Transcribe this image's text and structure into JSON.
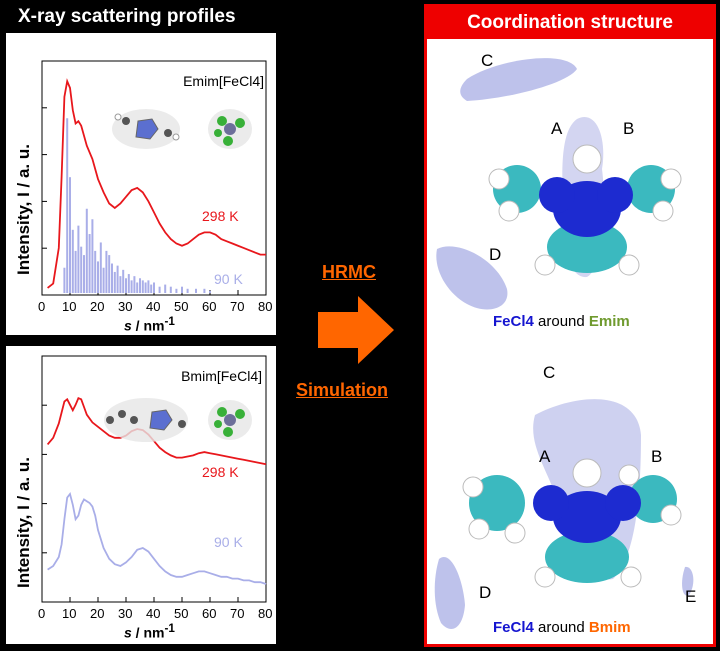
{
  "left_title": "X-ray scattering profiles",
  "right_title": "Coordination structure",
  "hrmc": "HRMC",
  "simulation": "Simulation",
  "charts": [
    {
      "label": "Emim[FeCl4]",
      "temp_hot": "298 K",
      "temp_cold": "90 K"
    },
    {
      "label": "Bmim[FeCl4]",
      "temp_hot": "298 K",
      "temp_cold": "90 K"
    }
  ],
  "y_label": "Intensity, I / a. u.",
  "x_label": "s / nm-1",
  "x_ticks": [
    "0",
    "10",
    "20",
    "30",
    "40",
    "50",
    "60",
    "70",
    "80"
  ],
  "sites_top": [
    "A",
    "B",
    "C",
    "D"
  ],
  "sites_bottom": [
    "A",
    "B",
    "C",
    "D",
    "E"
  ],
  "caption_top": {
    "ion": "FeCl4",
    "word": "around",
    "cation": "Emim"
  },
  "caption_bottom": {
    "ion": "FeCl4",
    "word": "around",
    "cation": "Bmim"
  },
  "colors": {
    "red": "#e8171c",
    "lavender": "#a9aee8",
    "cloud": "#aeb3e6",
    "orange": "#ff6600",
    "blue": "#1515d0",
    "green": "#6f9a2e"
  },
  "chart_data": [
    {
      "type": "line",
      "title": "Emim[FeCl4]",
      "xlabel": "s / nm-1",
      "ylabel": "Intensity, I / a. u.",
      "xlim": [
        0,
        80
      ],
      "series": [
        {
          "name": "298 K",
          "x": [
            2,
            4,
            6,
            7,
            8,
            9,
            10,
            11,
            12,
            13,
            14,
            16,
            18,
            20,
            22,
            24,
            26,
            28,
            30,
            32,
            34,
            36,
            38,
            40,
            42,
            44,
            46,
            48,
            50,
            52,
            54,
            56,
            58,
            60,
            62,
            64,
            66,
            68,
            70,
            72,
            74,
            76,
            78,
            80
          ],
          "y": [
            0.0,
            0.02,
            0.18,
            0.5,
            0.86,
            0.93,
            0.9,
            0.8,
            0.74,
            0.75,
            0.73,
            0.64,
            0.58,
            0.49,
            0.43,
            0.38,
            0.36,
            0.38,
            0.41,
            0.44,
            0.45,
            0.43,
            0.39,
            0.34,
            0.29,
            0.25,
            0.22,
            0.2,
            0.19,
            0.2,
            0.22,
            0.24,
            0.25,
            0.25,
            0.24,
            0.22,
            0.21,
            0.2,
            0.19,
            0.18,
            0.17,
            0.16,
            0.15,
            0.15
          ]
        },
        {
          "name": "90 K",
          "type": "stick",
          "x": [
            8,
            9,
            10,
            11,
            12,
            13,
            14,
            15,
            16,
            17,
            18,
            19,
            20,
            21,
            22,
            23,
            24,
            25,
            26,
            27,
            28,
            29,
            30,
            31,
            32,
            33,
            34,
            35,
            36,
            37,
            38,
            39,
            40,
            42,
            44,
            46,
            48,
            50,
            52,
            55,
            58,
            60
          ],
          "y": [
            0.12,
            0.83,
            0.55,
            0.3,
            0.2,
            0.32,
            0.22,
            0.18,
            0.4,
            0.28,
            0.35,
            0.2,
            0.15,
            0.24,
            0.12,
            0.2,
            0.18,
            0.14,
            0.1,
            0.13,
            0.08,
            0.11,
            0.07,
            0.09,
            0.06,
            0.08,
            0.05,
            0.07,
            0.06,
            0.05,
            0.06,
            0.04,
            0.05,
            0.03,
            0.04,
            0.03,
            0.02,
            0.03,
            0.02,
            0.02,
            0.02,
            0.01
          ]
        }
      ]
    },
    {
      "type": "line",
      "title": "Bmim[FeCl4]",
      "xlabel": "s / nm-1",
      "ylabel": "Intensity, I / a. u.",
      "xlim": [
        0,
        80
      ],
      "series": [
        {
          "name": "298 K",
          "x": [
            2,
            4,
            6,
            7,
            8,
            9,
            10,
            11,
            12,
            13,
            14,
            15,
            16,
            18,
            20,
            22,
            24,
            26,
            28,
            30,
            32,
            34,
            36,
            38,
            40,
            42,
            44,
            46,
            48,
            50,
            52,
            54,
            56,
            58,
            60,
            62,
            64,
            66,
            68,
            70,
            72,
            74,
            76,
            78,
            80
          ],
          "y": [
            0.56,
            0.62,
            0.75,
            0.85,
            0.95,
            0.97,
            0.92,
            0.87,
            0.92,
            0.98,
            0.97,
            0.9,
            0.83,
            0.76,
            0.72,
            0.68,
            0.64,
            0.62,
            0.62,
            0.64,
            0.68,
            0.7,
            0.69,
            0.65,
            0.59,
            0.53,
            0.49,
            0.46,
            0.44,
            0.44,
            0.45,
            0.46,
            0.48,
            0.49,
            0.48,
            0.47,
            0.46,
            0.45,
            0.44,
            0.43,
            0.42,
            0.41,
            0.4,
            0.39,
            0.38
          ]
        },
        {
          "name": "90 K",
          "x": [
            2,
            4,
            6,
            7,
            8,
            9,
            10,
            11,
            12,
            13,
            14,
            15,
            16,
            17,
            18,
            19,
            20,
            22,
            24,
            26,
            28,
            30,
            32,
            34,
            36,
            38,
            40,
            42,
            44,
            46,
            48,
            50,
            52,
            54,
            56,
            58,
            60,
            62,
            64,
            66,
            68,
            70,
            72,
            74,
            76,
            78,
            80
          ],
          "y": [
            0.08,
            0.1,
            0.15,
            0.22,
            0.36,
            0.48,
            0.5,
            0.44,
            0.36,
            0.38,
            0.44,
            0.47,
            0.46,
            0.45,
            0.43,
            0.38,
            0.3,
            0.2,
            0.14,
            0.11,
            0.1,
            0.12,
            0.15,
            0.19,
            0.2,
            0.18,
            0.14,
            0.1,
            0.07,
            0.05,
            0.04,
            0.04,
            0.05,
            0.06,
            0.07,
            0.07,
            0.06,
            0.05,
            0.04,
            0.04,
            0.03,
            0.03,
            0.02,
            0.02,
            0.01,
            0.01,
            0.0
          ]
        }
      ]
    }
  ]
}
